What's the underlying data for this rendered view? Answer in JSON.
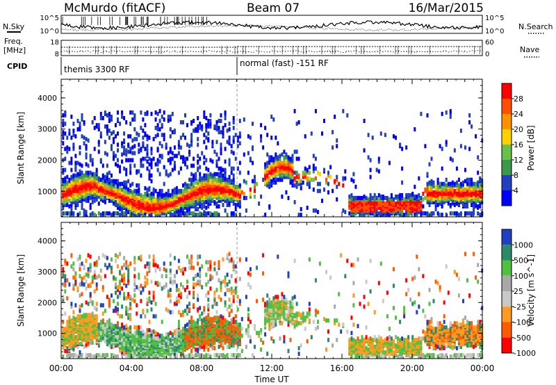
{
  "header": {
    "site": "McMurdo (fitACF)",
    "beam": "Beam 07",
    "date": "16/Mar/2015"
  },
  "left_labels": {
    "nsky": "N.Sky",
    "freq_line1": "Freq.",
    "freq_line2": "[MHz]",
    "cpid": "CPID"
  },
  "right_labels": {
    "nsearch": "N.Search",
    "nave": "Nave"
  },
  "cpid_segments": [
    {
      "label": "themis 3300 RF",
      "start": "00:00",
      "end": "10:00"
    },
    {
      "label": "normal (fast) -151 RF",
      "start": "10:00",
      "end": "24:00"
    }
  ],
  "noise_axis": {
    "top": "10^5",
    "bottom": "10^0"
  },
  "freq_axis": {
    "left_ticks": [
      "18",
      "8"
    ],
    "right_ticks": [
      "60",
      "0"
    ]
  },
  "colors": {
    "power": [
      "#0000ff",
      "#2040c0",
      "#3a9a4a",
      "#6ac04a",
      "#ffd000",
      "#ff9000",
      "#ff5000",
      "#ff0000"
    ],
    "velocity": [
      "#ff0000",
      "#ff5a00",
      "#ff9a20",
      "#c8c8c8",
      "#a8a8a8",
      "#50c040",
      "#2a8a6a",
      "#2040c0"
    ]
  },
  "chart_data": [
    {
      "type": "heatmap",
      "name": "power",
      "ylabel": "Slant Range [km]",
      "yticks": [
        1000,
        2000,
        3000,
        4000
      ],
      "ylim": [
        180,
        4600
      ],
      "xticks": [
        "00:00",
        "04:00",
        "08:00",
        "12:00",
        "16:00",
        "20:00",
        "00:00"
      ],
      "xlim_hours": [
        0,
        24
      ],
      "colorbar_label": "Power [dB]",
      "colorbar_ticks": [
        "4",
        "8",
        "12",
        "16",
        "20",
        "24",
        "28"
      ]
    },
    {
      "type": "heatmap",
      "name": "velocity",
      "ylabel": "Slant Range [km]",
      "yticks": [
        1000,
        2000,
        3000,
        4000
      ],
      "ylim": [
        180,
        4600
      ],
      "xticks": [
        "00:00",
        "04:00",
        "08:00",
        "12:00",
        "16:00",
        "20:00",
        "00:00"
      ],
      "xlim_hours": [
        0,
        24
      ],
      "xlabel": "Time UT",
      "colorbar_label": "Velocity [m s^-1]",
      "colorbar_ticks": [
        "1000",
        "500",
        "100",
        "25",
        "-25",
        "-100",
        "-500",
        "-1000"
      ]
    }
  ]
}
